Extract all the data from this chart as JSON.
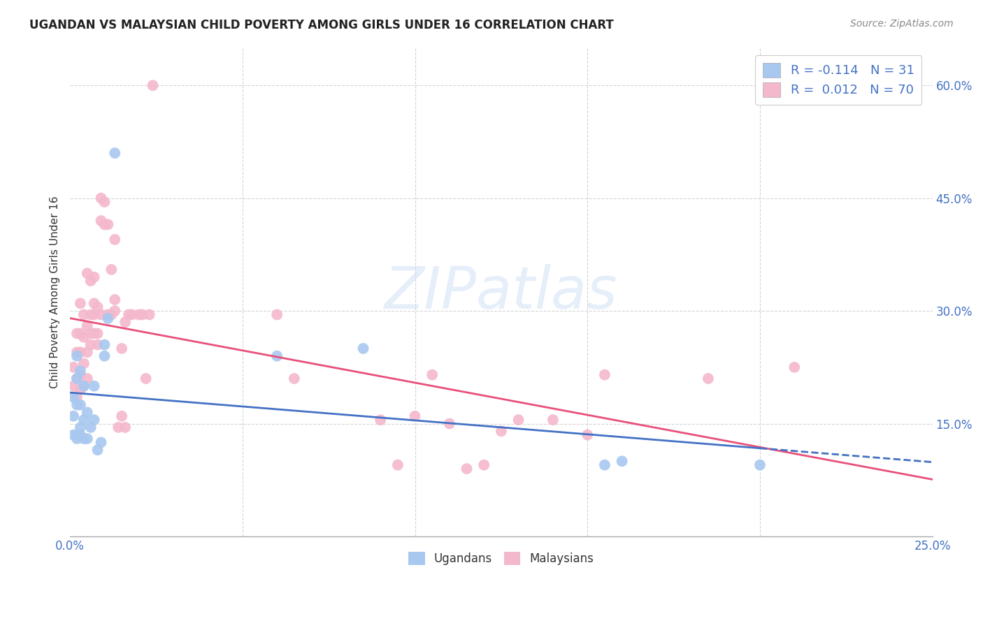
{
  "title": "UGANDAN VS MALAYSIAN CHILD POVERTY AMONG GIRLS UNDER 16 CORRELATION CHART",
  "source": "Source: ZipAtlas.com",
  "ylabel": "Child Poverty Among Girls Under 16",
  "ytick_labels": [
    "15.0%",
    "30.0%",
    "45.0%",
    "60.0%"
  ],
  "ytick_values": [
    0.15,
    0.3,
    0.45,
    0.6
  ],
  "xtick_left_label": "0.0%",
  "xtick_right_label": "25.0%",
  "xlim": [
    0.0,
    0.25
  ],
  "ylim": [
    0.0,
    0.65
  ],
  "ugandan_color": "#a8c8f0",
  "malaysian_color": "#f4b8cc",
  "ugandan_line_color": "#4472c4",
  "malaysian_line_color": "#e8507a",
  "watermark": "ZIPatlas",
  "ugandan_x": [
    0.001,
    0.001,
    0.001,
    0.002,
    0.002,
    0.002,
    0.002,
    0.002,
    0.003,
    0.003,
    0.003,
    0.003,
    0.004,
    0.004,
    0.004,
    0.005,
    0.005,
    0.006,
    0.007,
    0.007,
    0.008,
    0.009,
    0.01,
    0.01,
    0.011,
    0.013,
    0.06,
    0.085,
    0.155,
    0.16,
    0.2
  ],
  "ugandan_y": [
    0.135,
    0.16,
    0.185,
    0.13,
    0.135,
    0.175,
    0.21,
    0.24,
    0.135,
    0.145,
    0.175,
    0.22,
    0.13,
    0.155,
    0.2,
    0.13,
    0.165,
    0.145,
    0.155,
    0.2,
    0.115,
    0.125,
    0.24,
    0.255,
    0.29,
    0.51,
    0.24,
    0.25,
    0.095,
    0.1,
    0.095
  ],
  "malaysian_x": [
    0.001,
    0.001,
    0.002,
    0.002,
    0.002,
    0.002,
    0.003,
    0.003,
    0.003,
    0.003,
    0.003,
    0.004,
    0.004,
    0.004,
    0.004,
    0.005,
    0.005,
    0.005,
    0.005,
    0.006,
    0.006,
    0.006,
    0.006,
    0.007,
    0.007,
    0.007,
    0.007,
    0.008,
    0.008,
    0.008,
    0.009,
    0.009,
    0.009,
    0.01,
    0.01,
    0.011,
    0.011,
    0.012,
    0.012,
    0.013,
    0.013,
    0.013,
    0.014,
    0.015,
    0.015,
    0.016,
    0.016,
    0.017,
    0.018,
    0.02,
    0.021,
    0.022,
    0.023,
    0.024,
    0.06,
    0.065,
    0.09,
    0.095,
    0.1,
    0.105,
    0.11,
    0.115,
    0.12,
    0.125,
    0.13,
    0.14,
    0.15,
    0.155,
    0.185,
    0.21
  ],
  "malaysian_y": [
    0.2,
    0.225,
    0.185,
    0.21,
    0.245,
    0.27,
    0.195,
    0.215,
    0.245,
    0.27,
    0.31,
    0.2,
    0.23,
    0.265,
    0.295,
    0.21,
    0.245,
    0.28,
    0.35,
    0.255,
    0.27,
    0.295,
    0.34,
    0.27,
    0.295,
    0.31,
    0.345,
    0.255,
    0.27,
    0.305,
    0.295,
    0.42,
    0.45,
    0.415,
    0.445,
    0.295,
    0.415,
    0.295,
    0.355,
    0.3,
    0.315,
    0.395,
    0.145,
    0.16,
    0.25,
    0.145,
    0.285,
    0.295,
    0.295,
    0.295,
    0.295,
    0.21,
    0.295,
    0.6,
    0.295,
    0.21,
    0.155,
    0.095,
    0.16,
    0.215,
    0.15,
    0.09,
    0.095,
    0.14,
    0.155,
    0.155,
    0.135,
    0.215,
    0.21,
    0.225
  ],
  "ugandan_R": -0.114,
  "ugandan_N": 31,
  "malaysian_R": 0.012,
  "malaysian_N": 70,
  "background_color": "#ffffff",
  "grid_color": "#d0d0d0"
}
